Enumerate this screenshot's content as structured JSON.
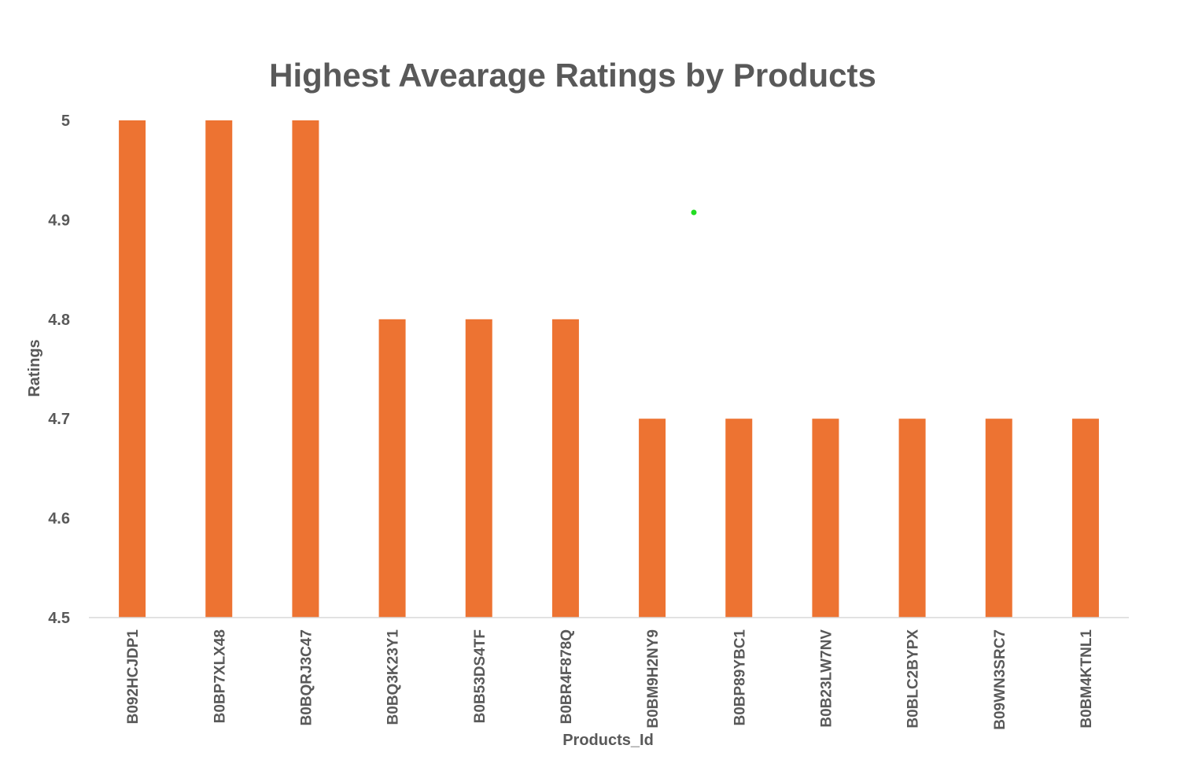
{
  "chart_data": {
    "type": "bar",
    "title": "Highest Avearage Ratings by Products",
    "xlabel": "Products_Id",
    "ylabel": "Ratings",
    "ylim": [
      4.5,
      5
    ],
    "yticks": [
      "4.5",
      "4.6",
      "4.7",
      "4.8",
      "4.9",
      "5"
    ],
    "grid": false,
    "legend": "none",
    "bar_color": "#ED7332",
    "categories": [
      "B092HCJDP1",
      "B0BP7XLX48",
      "B0BQRJ3C47",
      "B0BQ3K23Y1",
      "B0B53DS4TF",
      "B0BR4F878Q",
      "B0BM9H2NY9",
      "B0BP89YBC1",
      "B0B23LW7NV",
      "B0BLC2BYPX",
      "B09WN3SRC7",
      "B0BM4KTNL1"
    ],
    "values": [
      5,
      5,
      5,
      4.8,
      4.8,
      4.8,
      4.7,
      4.7,
      4.7,
      4.7,
      4.7,
      4.7
    ]
  }
}
